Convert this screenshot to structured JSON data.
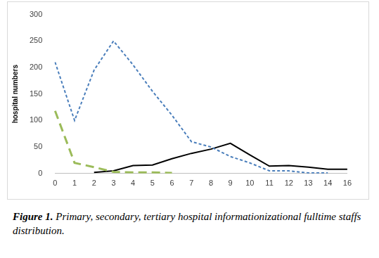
{
  "chart_data": {
    "type": "line",
    "y_label": "hospital numbers",
    "caption_label": "Figure 1.",
    "caption": "Primary, secondary, tertiary hospital informationizational fulltime staffs distribution.",
    "categories": [
      0,
      1,
      2,
      3,
      4,
      5,
      6,
      7,
      8,
      9,
      10,
      11,
      12,
      13,
      14,
      16
    ],
    "series": [
      {
        "color": "#4a7ebb",
        "line_style": "dash",
        "values": [
          210,
          100,
          195,
          250,
          205,
          155,
          110,
          60,
          50,
          32,
          20,
          5,
          5,
          1,
          1,
          null
        ]
      },
      {
        "color": "#9bbb59",
        "line_style": "long_dash",
        "values": [
          118,
          20,
          12,
          3,
          2,
          2,
          1,
          null,
          null,
          null,
          null,
          null,
          null,
          null,
          null,
          null
        ]
      },
      {
        "color": "#000000",
        "line_style": "solid",
        "values": [
          null,
          null,
          2,
          5,
          15,
          16,
          28,
          38,
          46,
          57,
          35,
          14,
          15,
          12,
          8,
          8
        ]
      }
    ],
    "ylim": [
      0,
      300
    ],
    "yticks": [
      0,
      50,
      100,
      150,
      200,
      250,
      300
    ],
    "grid": false
  }
}
